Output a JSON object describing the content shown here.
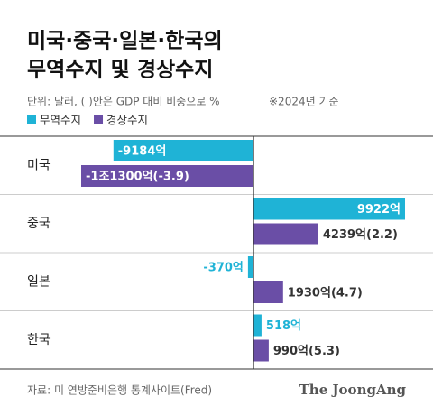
{
  "chart_data": {
    "type": "hbar",
    "title": [
      "미국·중국·일본·한국의",
      "무역수지 및 경상수지"
    ],
    "unit_note": "단위: 달러, ( )안은 GDP 대비 비중으로 %",
    "date_note": "※2024년 기준",
    "categories": [
      "미국",
      "중국",
      "일본",
      "한국"
    ],
    "series": [
      {
        "name": "무역수지",
        "color": "#1fb3d6",
        "values": [
          -9184,
          9922,
          -370,
          518
        ],
        "value_labels": [
          "-9184억",
          "9922억",
          "-370억",
          "518억"
        ]
      },
      {
        "name": "경상수지",
        "color": "#6a4ea6",
        "values": [
          -11300,
          4239,
          1930,
          990
        ],
        "value_labels": [
          "-1조1300억(-3.9)",
          "4239억(2.2)",
          "1930억(4.7)",
          "990억(5.3)"
        ]
      }
    ],
    "source": "자료: 미 연방준비은행 통계사이트(Fred)",
    "brand": "The JoongAng"
  }
}
